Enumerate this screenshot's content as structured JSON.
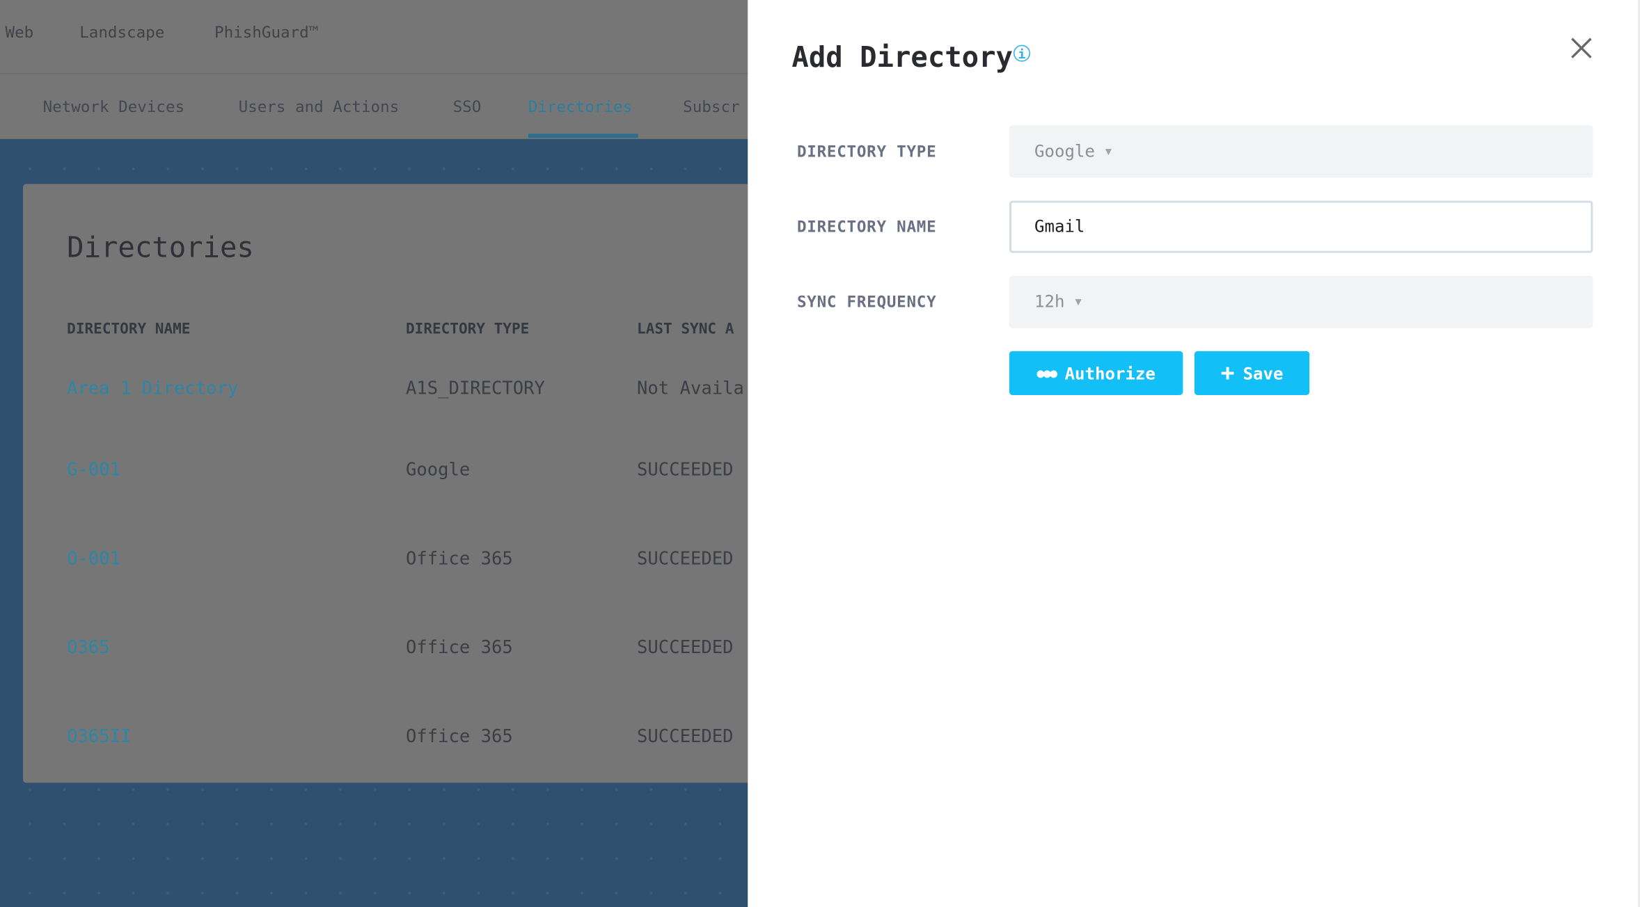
{
  "top_nav": {
    "items": [
      "Web",
      "Landscape",
      "PhishGuard™"
    ]
  },
  "tabs": {
    "items": [
      "Network Devices",
      "Users and Actions",
      "SSO",
      "Directories",
      "Subscr"
    ],
    "active": "Directories"
  },
  "card": {
    "title": "Directories",
    "columns": [
      "DIRECTORY NAME",
      "DIRECTORY TYPE",
      "LAST SYNC A"
    ],
    "rows": [
      {
        "name": "Area 1 Directory",
        "type": "A1S_DIRECTORY",
        "last_sync": "Not Availa"
      },
      {
        "name": "G-001",
        "type": "Google",
        "last_sync": "SUCCEEDED"
      },
      {
        "name": "O-001",
        "type": "Office 365",
        "last_sync": "SUCCEEDED"
      },
      {
        "name": "O365",
        "type": "Office 365",
        "last_sync": "SUCCEEDED"
      },
      {
        "name": "O365II",
        "type": "Office 365",
        "last_sync": "SUCCEEDED"
      }
    ]
  },
  "panel": {
    "title": "Add Directory",
    "info_icon": "i",
    "fields": {
      "directory_type": {
        "label": "DIRECTORY TYPE",
        "value": "Google"
      },
      "directory_name": {
        "label": "DIRECTORY NAME",
        "value": "Gmail"
      },
      "sync_frequency": {
        "label": "SYNC FREQUENCY",
        "value": "12h"
      }
    },
    "buttons": {
      "authorize": "Authorize",
      "save": "Save"
    }
  },
  "colors": {
    "accent": "#13bff7",
    "active_tab": "#2a7fa0",
    "link": "#2b86a8"
  }
}
